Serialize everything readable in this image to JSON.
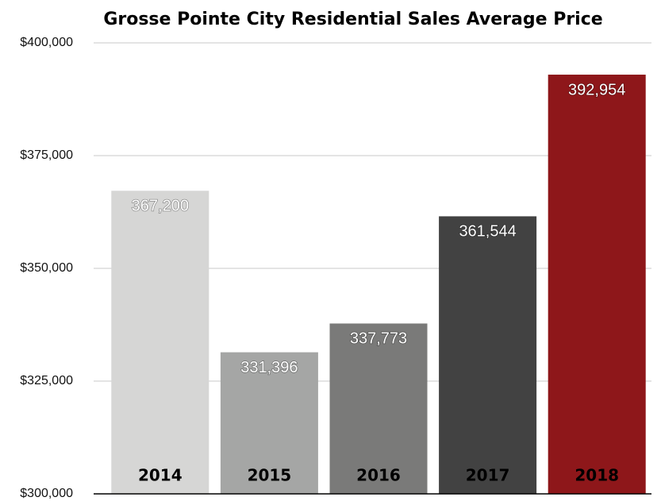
{
  "chart_data": {
    "type": "bar",
    "title": "Grosse Pointe City Residential Sales Average Price",
    "categories": [
      "2014",
      "2015",
      "2016",
      "2017",
      "2018"
    ],
    "values": [
      367200,
      331396,
      337773,
      361544,
      392954
    ],
    "value_labels": [
      "367,200",
      "331,396",
      "337,773",
      "361,544",
      "392,954"
    ],
    "colors": [
      "#d6d6d5",
      "#a5a6a5",
      "#7a7a79",
      "#424242",
      "#8e171a"
    ],
    "ylim": [
      300000,
      400000
    ],
    "yticks": [
      {
        "value": 300000,
        "label": "$300,000"
      },
      {
        "value": 325000,
        "label": "$325,000"
      },
      {
        "value": 350000,
        "label": "$350,000"
      },
      {
        "value": 375000,
        "label": "$375,000"
      },
      {
        "value": 400000,
        "label": "$400,000"
      }
    ],
    "grid": true
  }
}
